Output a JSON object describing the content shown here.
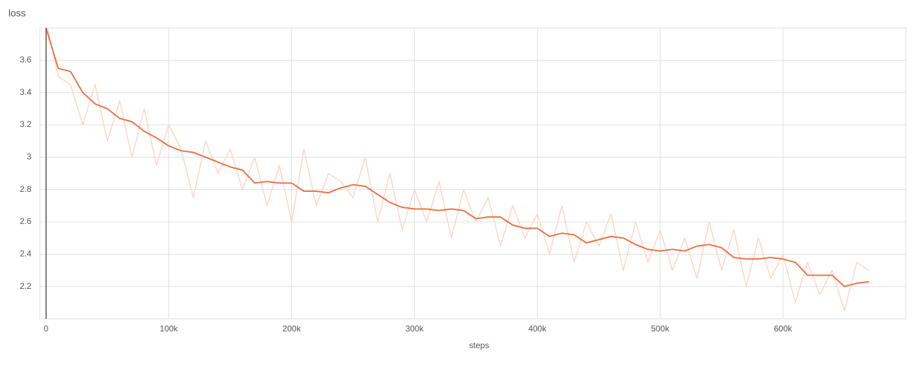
{
  "chart_data": {
    "type": "line",
    "title": "loss",
    "x_label": "steps",
    "x": [
      0,
      10000,
      20000,
      30000,
      40000,
      50000,
      60000,
      70000,
      80000,
      90000,
      100000,
      110000,
      120000,
      130000,
      140000,
      150000,
      160000,
      170000,
      180000,
      190000,
      200000,
      210000,
      220000,
      230000,
      240000,
      250000,
      260000,
      270000,
      280000,
      290000,
      300000,
      310000,
      320000,
      330000,
      340000,
      350000,
      360000,
      370000,
      380000,
      390000,
      400000,
      410000,
      420000,
      430000,
      440000,
      450000,
      460000,
      470000,
      480000,
      490000,
      500000,
      510000,
      520000,
      530000,
      540000,
      550000,
      560000,
      570000,
      580000,
      590000,
      600000,
      610000,
      620000,
      630000,
      640000,
      650000,
      660000,
      670000
    ],
    "series": [
      {
        "color": "#fbd6c8",
        "values": [
          3.85,
          3.5,
          3.45,
          3.2,
          3.45,
          3.1,
          3.35,
          3.0,
          3.3,
          2.95,
          3.2,
          3.05,
          2.75,
          3.1,
          2.9,
          3.05,
          2.8,
          3.0,
          2.7,
          2.95,
          2.6,
          3.05,
          2.7,
          2.9,
          2.85,
          2.75,
          3.0,
          2.6,
          2.9,
          2.55,
          2.8,
          2.6,
          2.85,
          2.5,
          2.8,
          2.6,
          2.75,
          2.45,
          2.7,
          2.5,
          2.65,
          2.4,
          2.7,
          2.35,
          2.6,
          2.45,
          2.65,
          2.3,
          2.6,
          2.35,
          2.55,
          2.3,
          2.5,
          2.25,
          2.6,
          2.3,
          2.55,
          2.2,
          2.5,
          2.25,
          2.4,
          2.1,
          2.35,
          2.15,
          2.3,
          2.05,
          2.35,
          2.3
        ]
      },
      {
        "color": "#ec7449",
        "values": [
          3.8,
          3.55,
          3.53,
          3.4,
          3.33,
          3.3,
          3.24,
          3.22,
          3.16,
          3.12,
          3.07,
          3.04,
          3.03,
          3.0,
          2.97,
          2.94,
          2.92,
          2.84,
          2.85,
          2.84,
          2.84,
          2.79,
          2.79,
          2.78,
          2.81,
          2.83,
          2.82,
          2.77,
          2.72,
          2.69,
          2.68,
          2.68,
          2.67,
          2.68,
          2.67,
          2.62,
          2.63,
          2.63,
          2.58,
          2.56,
          2.56,
          2.51,
          2.53,
          2.52,
          2.47,
          2.49,
          2.51,
          2.5,
          2.46,
          2.43,
          2.42,
          2.43,
          2.42,
          2.45,
          2.46,
          2.44,
          2.38,
          2.37,
          2.37,
          2.38,
          2.37,
          2.35,
          2.27,
          2.27,
          2.27,
          2.2,
          2.22,
          2.23
        ]
      }
    ],
    "xlim": [
      -5000,
      700000
    ],
    "ylim": [
      2.0,
      3.8
    ],
    "xticks": [
      {
        "value": 0,
        "label": "0"
      },
      {
        "value": 100000,
        "label": "100k"
      },
      {
        "value": 200000,
        "label": "200k"
      },
      {
        "value": 300000,
        "label": "300k"
      },
      {
        "value": 400000,
        "label": "400k"
      },
      {
        "value": 500000,
        "label": "500k"
      },
      {
        "value": 600000,
        "label": "600k"
      }
    ],
    "yticks": [
      2.2,
      2.4,
      2.6,
      2.8,
      3,
      3.2,
      3.4,
      3.6
    ],
    "grid": true
  }
}
